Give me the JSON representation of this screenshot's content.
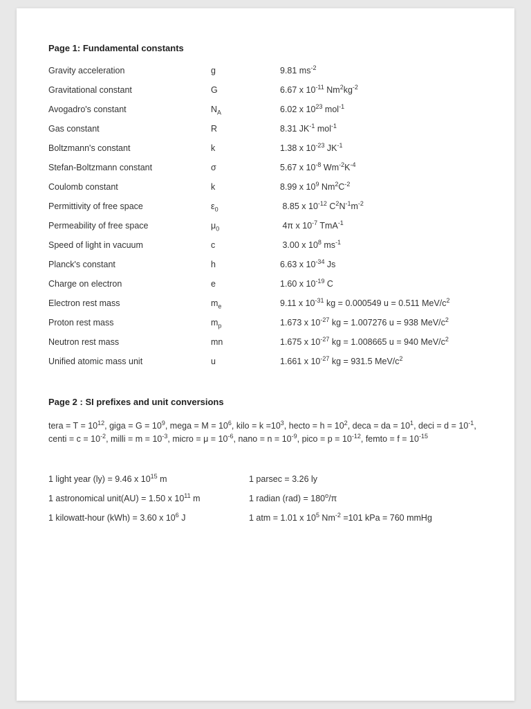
{
  "background_color": "#e8e8e8",
  "page_color": "#ffffff",
  "text_color": "#333333",
  "font_family": "Arial",
  "heading_fontsize": 13,
  "body_fontsize": 12.5,
  "page1": {
    "heading": "Page 1: Fundamental constants",
    "rows": [
      {
        "name": "Gravity acceleration",
        "symbol_html": "g",
        "value_html": "9.81 ms<sup>-2</sup>"
      },
      {
        "name": "Gravitational constant",
        "symbol_html": "G",
        "value_html": "6.67 x 10<sup>-11</sup> Nm<sup>2</sup>kg<sup>-2</sup>"
      },
      {
        "name": "Avogadro's constant",
        "symbol_html": "N<sub>A</sub>",
        "value_html": "6.02 x 10<sup>23</sup> mol<sup>-1</sup>"
      },
      {
        "name": "Gas constant",
        "symbol_html": "R",
        "value_html": "8.31 JK<sup>-1</sup> mol<sup>-1</sup>"
      },
      {
        "name": "Boltzmann's constant",
        "symbol_html": "k",
        "value_html": "1.38 x 10<sup>-23</sup> JK<sup>-1</sup>"
      },
      {
        "name": "Stefan-Boltzmann constant",
        "symbol_html": "σ",
        "value_html": "5.67 x 10<sup>-8</sup> Wm<sup>-2</sup>K<sup>-4</sup>"
      },
      {
        "name": "Coulomb constant",
        "symbol_html": "k",
        "value_html": "8.99 x 10<sup>9</sup> Nm<sup>2</sup>C<sup>-2</sup>"
      },
      {
        "name": "Permittivity of free space",
        "symbol_html": "ε<sub>0</sub>",
        "value_html": "&nbsp;8.85 x 10<sup>-12</sup> C<sup>2</sup>N<sup>-1</sup>m<sup>-2</sup>"
      },
      {
        "name": "Permeability of free space",
        "symbol_html": "μ<sub>0</sub>",
        "value_html": "&nbsp;4π x 10<sup>-7</sup> TmA<sup>-1</sup>"
      },
      {
        "name": "Speed of light in vacuum",
        "symbol_html": "c",
        "value_html": "&nbsp;3.00 x 10<sup>8</sup> ms<sup>-1</sup>"
      },
      {
        "name": "Planck's constant",
        "symbol_html": "h",
        "value_html": "6.63 x 10<sup>-34</sup> Js"
      },
      {
        "name": "Charge on electron",
        "symbol_html": "e",
        "value_html": "1.60 x 10<sup>-19</sup> C"
      },
      {
        "name": "Electron rest mass",
        "symbol_html": "m<sub>e</sub>",
        "value_html": "9.11 x 10<sup>-31</sup> kg = 0.000549 u = 0.511 MeV/c<sup>2</sup>"
      },
      {
        "name": "Proton rest mass",
        "symbol_html": "m<sub>p</sub>",
        "value_html": "1.673 x 10<sup>-27</sup> kg = 1.007276 u = 938 MeV/c<sup>2</sup>"
      },
      {
        "name": "Neutron rest mass",
        "symbol_html": "mn",
        "value_html": "1.675 x 10<sup>-27</sup> kg = 1.008665 u = 940 MeV/c<sup>2</sup>"
      },
      {
        "name": "Unified atomic mass unit",
        "symbol_html": "u",
        "value_html": "1.661 x 10<sup>-27</sup> kg = 931.5 MeV/c<sup>2</sup>"
      }
    ]
  },
  "page2": {
    "heading": "Page 2 : SI prefixes and unit conversions",
    "prefixes_html": "tera = T = 10<sup>12</sup>, giga = G = 10<sup>9</sup>, mega = M = 10<sup>6</sup>, kilo = k =10<sup>3</sup>, hecto = h = 10<sup>2</sup>, deca = da = 10<sup>1</sup>, deci = d = 10<sup>-1</sup>, centi = c = 10<sup>-2</sup>, milli = m = 10<sup>-3</sup>, micro = μ = 10<sup>-6</sup>, nano = n = 10<sup>-9</sup>, pico = p = 10<sup>-12</sup>, femto = f = 10<sup>-15</sup>",
    "conversions": [
      {
        "left_html": "1 light year (ly) = 9.46 x 10<sup>15</sup> m",
        "right_html": "1 parsec = 3.26 ly"
      },
      {
        "left_html": "1 astronomical unit(AU) = 1.50 x 10<sup>11</sup> m",
        "right_html": "1 radian (rad) = 180<sup>o</sup>/π"
      },
      {
        "left_html": "1 kilowatt-hour (kWh) = 3.60 x 10<sup>6</sup> J",
        "right_html": "1 atm = 1.01 x 10<sup>5</sup> Nm<sup>-2</sup> =101 kPa = 760 mmHg"
      }
    ]
  }
}
